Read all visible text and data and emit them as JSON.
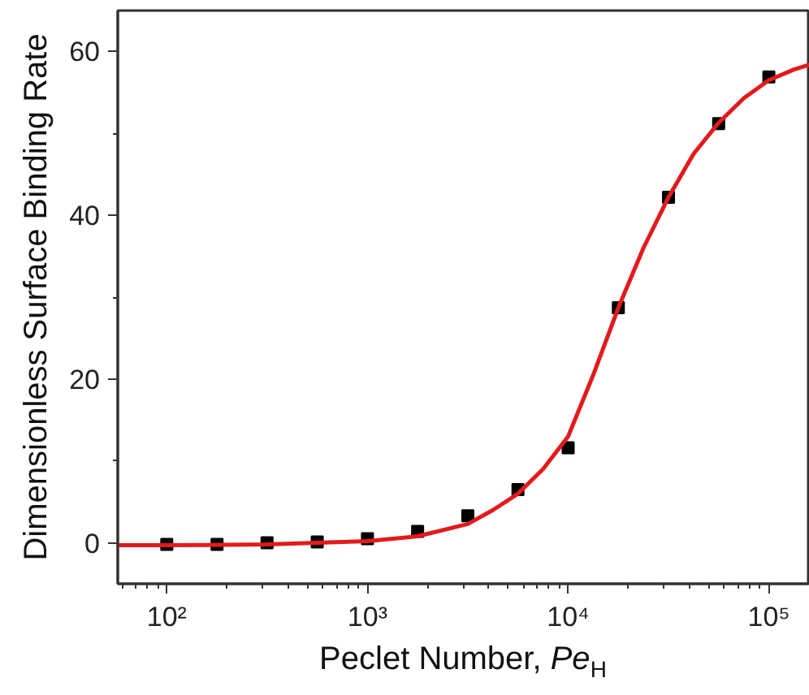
{
  "chart_data": {
    "type": "scatter",
    "xlabel": "Peclet Number, Pe$_{H}$",
    "ylabel": "Dimensionless Surface Binding Rate",
    "log": "x",
    "marker": "square",
    "grid": false,
    "xlim": [
      57,
      160000
    ],
    "ylim": [
      -5,
      65
    ],
    "xticks": [
      {
        "value": 100,
        "label": "10²"
      },
      {
        "value": 1000,
        "label": "10³"
      },
      {
        "value": 10000,
        "label": "10⁴"
      },
      {
        "value": 100000,
        "label": "10⁵"
      }
    ],
    "yticks": [
      0,
      {
        "value": 10,
        "label": null
      },
      20,
      {
        "value": 30,
        "label": null
      },
      40,
      {
        "value": 50,
        "label": null
      },
      60
    ],
    "series": [
      {
        "color": "#000000",
        "x": [
          100,
          178,
          316,
          562,
          1000,
          1778,
          3162,
          5623,
          10000,
          17783,
          31623,
          56234,
          100000
        ],
        "values": [
          -0.2,
          -0.2,
          0,
          0.1,
          0.5,
          1.4,
          3.3,
          6.5,
          11.6,
          28.7,
          42.2,
          51.2,
          56.9
        ]
      },
      {
        "type": "line",
        "color": "#e31a1c",
        "marker": "none",
        "x": [
          57,
          100,
          316,
          1000,
          1778,
          3162,
          4217,
          5623,
          7499,
          10000,
          13335,
          17783,
          23714,
          31623,
          42170,
          56234,
          74989,
          100000,
          133352,
          160000
        ],
        "values": [
          -0.3,
          -0.3,
          -0.2,
          0.2,
          0.8,
          2.3,
          4.0,
          6.0,
          9.0,
          13.0,
          20.5,
          28.7,
          36.0,
          42.2,
          47.5,
          51.3,
          54.3,
          56.5,
          57.8,
          58.4
        ]
      }
    ]
  }
}
